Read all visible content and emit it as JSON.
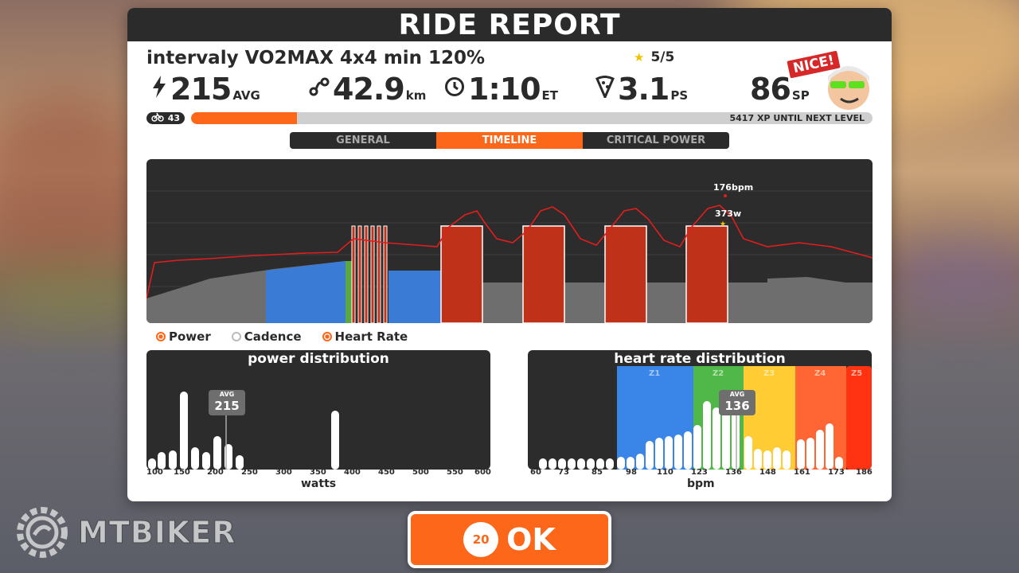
{
  "window": {
    "title": "RIDE REPORT"
  },
  "workout": {
    "name": "intervaly VO2MAX 4x4 min 120%",
    "rating": "5/5"
  },
  "stats": [
    {
      "icon": "lightning-icon",
      "value": "215",
      "unit": "AVG"
    },
    {
      "icon": "route-icon",
      "value": "42.9",
      "unit": "km"
    },
    {
      "icon": "clock-icon",
      "value": "1:10",
      "unit": "ET"
    },
    {
      "icon": "pizza-icon",
      "value": "3.1",
      "unit": "PS"
    },
    {
      "icon": "",
      "value": "86",
      "unit": "SP"
    }
  ],
  "avatar": {
    "badge": "NICE!"
  },
  "xp": {
    "level": "43",
    "progress": 0.155,
    "text": "5417 XP UNTIL NEXT LEVEL"
  },
  "tabs": [
    {
      "label": "GENERAL",
      "active": false
    },
    {
      "label": "TIMELINE",
      "active": true
    },
    {
      "label": "CRITICAL POWER",
      "active": false
    }
  ],
  "timeline": {
    "hr_peak_label": "176bpm",
    "power_peak_label": "373w",
    "colors": {
      "grey": "#6e6e6e",
      "blue": "#3a7bd5",
      "green": "#5aa844",
      "red": "#c0311a",
      "line": "#e31d1d"
    }
  },
  "legend": [
    {
      "label": "Power",
      "on": true
    },
    {
      "label": "Cadence",
      "on": false
    },
    {
      "label": "Heart Rate",
      "on": true
    }
  ],
  "power_distribution": {
    "title": "power distribution",
    "avg_label": "AVG",
    "avg_value": "215",
    "axis_name": "watts",
    "ticks": [
      "100",
      "150",
      "200",
      "250",
      "300",
      "350",
      "400",
      "450",
      "500",
      "550",
      "600"
    ]
  },
  "hr_distribution": {
    "title": "heart rate distribution",
    "avg_label": "AVG",
    "avg_value": "136",
    "axis_name": "bpm",
    "zones": [
      "Z1",
      "Z2",
      "Z3",
      "Z4",
      "Z5"
    ],
    "zone_colors": [
      "#3a86e8",
      "#50b848",
      "#ffcc33",
      "#ff6633",
      "#ff3311"
    ],
    "ticks": [
      "60",
      "73",
      "85",
      "98",
      "110",
      "123",
      "136",
      "148",
      "161",
      "173",
      "186"
    ]
  },
  "ok_button": {
    "countdown": "20",
    "label": "OK"
  },
  "watermark": {
    "text": "MTBIKER"
  }
}
